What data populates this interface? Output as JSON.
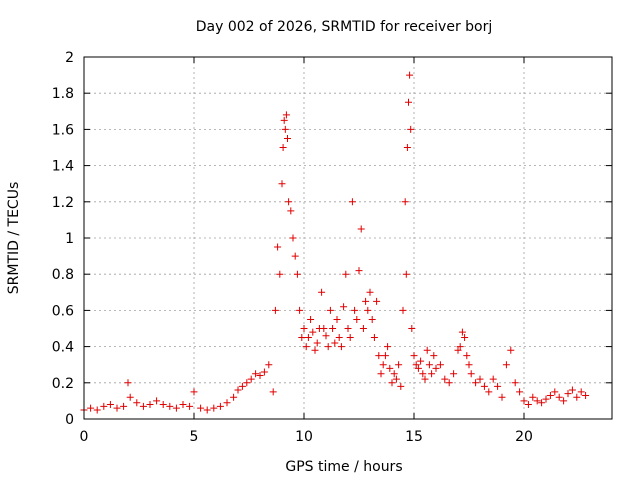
{
  "chart_data": {
    "type": "scatter",
    "title": "Day 002 of 2026, SRMTID for receiver borj",
    "xlabel": "GPS time / hours",
    "ylabel": "SRMTID / TECUs",
    "xlim": [
      0,
      24
    ],
    "ylim": [
      0,
      2
    ],
    "xticks": [
      0,
      5,
      10,
      15,
      20
    ],
    "xtick_labels": [
      "0",
      "5",
      "10",
      "15",
      "20"
    ],
    "yticks": [
      0,
      0.2,
      0.4,
      0.6,
      0.8,
      1,
      1.2,
      1.4,
      1.6,
      1.8,
      2
    ],
    "ytick_labels": [
      "0",
      "0.2",
      "0.4",
      "0.6",
      "0.8",
      "1",
      "1.2",
      "1.4",
      "1.6",
      "1.8",
      "2"
    ],
    "grid": true,
    "marker": "+",
    "color": "#e00000",
    "series": [
      {
        "name": "SRMTID",
        "x": [
          0.0,
          0.3,
          0.6,
          0.9,
          1.2,
          1.5,
          1.8,
          2.0,
          2.1,
          2.4,
          2.7,
          3.0,
          3.3,
          3.6,
          3.9,
          4.2,
          4.5,
          4.8,
          5.0,
          5.3,
          5.6,
          5.9,
          6.2,
          6.5,
          6.8,
          7.0,
          7.2,
          7.4,
          7.6,
          7.8,
          8.0,
          8.2,
          8.4,
          8.6,
          8.7,
          8.8,
          8.9,
          9.0,
          9.05,
          9.1,
          9.15,
          9.2,
          9.25,
          9.3,
          9.4,
          9.5,
          9.6,
          9.7,
          9.8,
          9.9,
          10.0,
          10.1,
          10.2,
          10.3,
          10.4,
          10.5,
          10.6,
          10.7,
          10.8,
          10.9,
          11.0,
          11.1,
          11.2,
          11.3,
          11.4,
          11.5,
          11.6,
          11.7,
          11.8,
          11.9,
          12.0,
          12.1,
          12.2,
          12.3,
          12.4,
          12.5,
          12.6,
          12.7,
          12.8,
          12.9,
          13.0,
          13.1,
          13.2,
          13.3,
          13.4,
          13.5,
          13.6,
          13.7,
          13.8,
          13.9,
          14.0,
          14.1,
          14.2,
          14.3,
          14.4,
          14.5,
          14.6,
          14.65,
          14.7,
          14.75,
          14.8,
          14.85,
          14.9,
          15.0,
          15.1,
          15.2,
          15.3,
          15.4,
          15.5,
          15.6,
          15.7,
          15.8,
          15.9,
          16.0,
          16.2,
          16.4,
          16.6,
          16.8,
          17.0,
          17.1,
          17.2,
          17.3,
          17.4,
          17.5,
          17.6,
          17.8,
          18.0,
          18.2,
          18.4,
          18.6,
          18.8,
          19.0,
          19.2,
          19.4,
          19.6,
          19.8,
          20.0,
          20.2,
          20.4,
          20.6,
          20.8,
          21.0,
          21.2,
          21.4,
          21.6,
          21.8,
          22.0,
          22.2,
          22.4,
          22.6,
          22.8
        ],
        "y": [
          0.05,
          0.06,
          0.05,
          0.07,
          0.08,
          0.06,
          0.07,
          0.2,
          0.12,
          0.09,
          0.07,
          0.08,
          0.1,
          0.08,
          0.07,
          0.06,
          0.08,
          0.07,
          0.15,
          0.06,
          0.05,
          0.06,
          0.07,
          0.09,
          0.12,
          0.16,
          0.18,
          0.2,
          0.22,
          0.25,
          0.24,
          0.26,
          0.3,
          0.15,
          0.6,
          0.95,
          0.8,
          1.3,
          1.5,
          1.65,
          1.6,
          1.68,
          1.55,
          1.2,
          1.15,
          1.0,
          0.9,
          0.8,
          0.6,
          0.45,
          0.5,
          0.4,
          0.45,
          0.55,
          0.48,
          0.38,
          0.42,
          0.5,
          0.7,
          0.5,
          0.46,
          0.4,
          0.6,
          0.5,
          0.42,
          0.55,
          0.45,
          0.4,
          0.62,
          0.8,
          0.5,
          0.45,
          1.2,
          0.6,
          0.55,
          0.82,
          1.05,
          0.5,
          0.65,
          0.6,
          0.7,
          0.55,
          0.45,
          0.65,
          0.35,
          0.25,
          0.3,
          0.35,
          0.4,
          0.28,
          0.2,
          0.25,
          0.22,
          0.3,
          0.18,
          0.6,
          1.2,
          0.8,
          1.5,
          1.75,
          1.9,
          1.6,
          0.5,
          0.35,
          0.3,
          0.28,
          0.32,
          0.25,
          0.22,
          0.38,
          0.3,
          0.25,
          0.35,
          0.28,
          0.3,
          0.22,
          0.2,
          0.25,
          0.38,
          0.4,
          0.48,
          0.45,
          0.35,
          0.3,
          0.25,
          0.2,
          0.22,
          0.18,
          0.15,
          0.22,
          0.18,
          0.12,
          0.3,
          0.38,
          0.2,
          0.15,
          0.1,
          0.08,
          0.12,
          0.1,
          0.09,
          0.11,
          0.13,
          0.15,
          0.12,
          0.1,
          0.14,
          0.16,
          0.12,
          0.15,
          0.13
        ]
      }
    ]
  }
}
